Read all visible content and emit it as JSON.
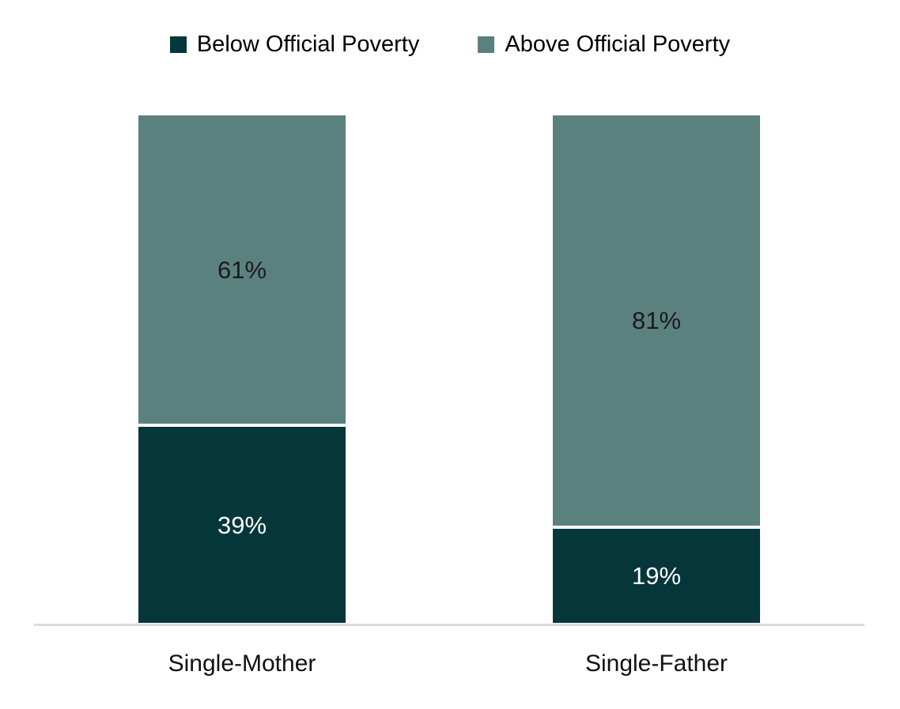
{
  "chart_data": {
    "type": "bar",
    "stacked": true,
    "unit": "%",
    "title": "",
    "categories": [
      "Single-Mother",
      "Single-Father"
    ],
    "series": [
      {
        "name": "Below Official Poverty",
        "color": "#04363a",
        "label_color": "#ffffff",
        "values": [
          39,
          19
        ],
        "labels": [
          "39%",
          "19%"
        ]
      },
      {
        "name": "Above Official Poverty",
        "color": "#5b817f",
        "label_color": "#1a1a1a",
        "values": [
          61,
          81
        ],
        "labels": [
          "61%",
          "81%"
        ]
      }
    ],
    "ylim": [
      0,
      100
    ],
    "grid": false,
    "legend_position": "top",
    "axis_line_color": "#dcdcdc",
    "background_color": "#ffffff"
  }
}
